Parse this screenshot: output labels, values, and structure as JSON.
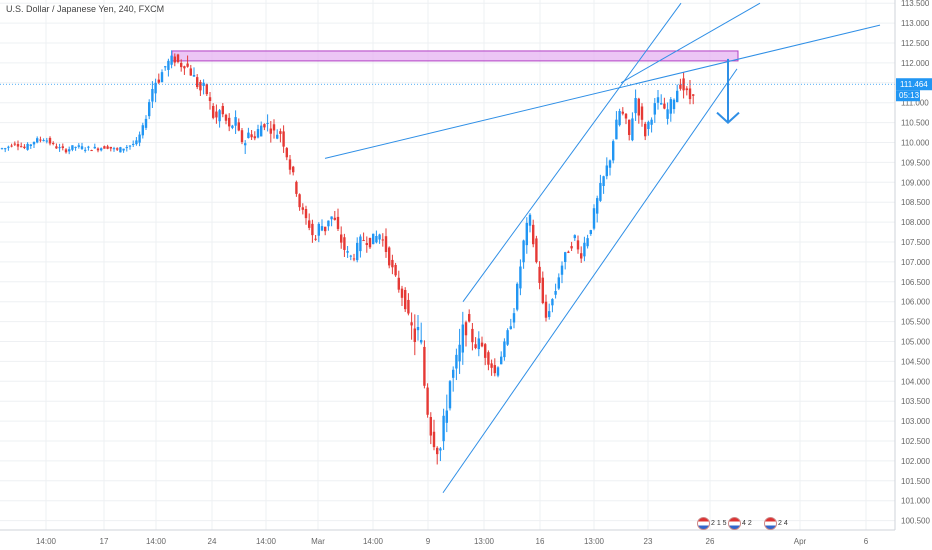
{
  "header": {
    "title": "U.S. Dollar / Japanese Yen, 240, FXCM"
  },
  "colors": {
    "up": "#2196f3",
    "down": "#e53935",
    "trendline": "#2f8fe6",
    "zone_fill": "#e6b3f2",
    "zone_border": "#b13fc4",
    "last_price": "#2196f3"
  },
  "price_label": {
    "last": "111.464",
    "countdown": "05:13"
  },
  "events": [
    {
      "icon": "us-flag-icon",
      "text": "2 1 5"
    },
    {
      "icon": "us-flag-icon",
      "text": "4 2"
    },
    {
      "icon": "us-flag-icon",
      "text": "2 4"
    }
  ],
  "chart_data": {
    "type": "candlestick",
    "title": "U.S. Dollar / Japanese Yen, 240, FXCM",
    "ylim": [
      100.3,
      113.6
    ],
    "y_ticks": [
      "100.500",
      "101.000",
      "101.500",
      "102.000",
      "102.500",
      "103.000",
      "103.500",
      "104.000",
      "104.500",
      "105.000",
      "105.500",
      "106.000",
      "106.500",
      "107.000",
      "107.500",
      "108.000",
      "108.500",
      "109.000",
      "109.500",
      "110.000",
      "110.500",
      "111.000",
      "111.500",
      "112.000",
      "112.500",
      "113.000",
      "113.500"
    ],
    "x_ticks": [
      "14:00",
      "17",
      "14:00",
      "24",
      "14:00",
      "Mar",
      "14:00",
      "9",
      "13:00",
      "16",
      "13:00",
      "23",
      "26",
      "Apr",
      "6"
    ],
    "last_price": 111.464,
    "grid": true,
    "price_path": [
      [
        0,
        109.85
      ],
      [
        8,
        109.85
      ],
      [
        18,
        110.0
      ],
      [
        28,
        109.85
      ],
      [
        38,
        110.05
      ],
      [
        48,
        110.1
      ],
      [
        58,
        109.9
      ],
      [
        68,
        109.8
      ],
      [
        78,
        109.9
      ],
      [
        90,
        109.85
      ],
      [
        100,
        109.85
      ],
      [
        110,
        109.9
      ],
      [
        120,
        109.8
      ],
      [
        130,
        109.9
      ],
      [
        140,
        110.0
      ],
      [
        148,
        110.5
      ],
      [
        153,
        111.1
      ],
      [
        157,
        111.5
      ],
      [
        162,
        111.6
      ],
      [
        168,
        111.9
      ],
      [
        173,
        112.05
      ],
      [
        178,
        112.1
      ],
      [
        183,
        111.95
      ],
      [
        188,
        112.0
      ],
      [
        193,
        111.8
      ],
      [
        198,
        111.6
      ],
      [
        203,
        111.3
      ],
      [
        208,
        111.4
      ],
      [
        213,
        111.0
      ],
      [
        218,
        110.5
      ],
      [
        223,
        110.8
      ],
      [
        228,
        110.6
      ],
      [
        233,
        110.3
      ],
      [
        238,
        110.6
      ],
      [
        243,
        110.1
      ],
      [
        248,
        110.0
      ],
      [
        253,
        110.3
      ],
      [
        258,
        110.1
      ],
      [
        263,
        110.4
      ],
      [
        268,
        110.5
      ],
      [
        273,
        110.4
      ],
      [
        278,
        110.2
      ],
      [
        283,
        110.3
      ],
      [
        288,
        109.9
      ],
      [
        293,
        109.4
      ],
      [
        298,
        109.0
      ],
      [
        303,
        108.4
      ],
      [
        308,
        108.1
      ],
      [
        313,
        107.9
      ],
      [
        318,
        107.5
      ],
      [
        323,
        108.0
      ],
      [
        328,
        107.8
      ],
      [
        333,
        108.2
      ],
      [
        338,
        108.0
      ],
      [
        343,
        107.6
      ],
      [
        348,
        107.3
      ],
      [
        353,
        107.1
      ],
      [
        358,
        107.2
      ],
      [
        363,
        107.5
      ],
      [
        368,
        107.6
      ],
      [
        373,
        107.5
      ],
      [
        378,
        107.6
      ],
      [
        383,
        107.7
      ],
      [
        388,
        107.4
      ],
      [
        393,
        107.0
      ],
      [
        398,
        106.6
      ],
      [
        403,
        106.3
      ],
      [
        408,
        106.0
      ],
      [
        413,
        105.4
      ],
      [
        418,
        105.1
      ],
      [
        423,
        105.3
      ],
      [
        428,
        103.8
      ],
      [
        433,
        102.9
      ],
      [
        438,
        102.5
      ],
      [
        443,
        102.2
      ],
      [
        448,
        103.1
      ],
      [
        453,
        104.0
      ],
      [
        458,
        104.3
      ],
      [
        463,
        104.8
      ],
      [
        468,
        105.5
      ],
      [
        473,
        105.2
      ],
      [
        478,
        104.9
      ],
      [
        483,
        105.0
      ],
      [
        488,
        104.7
      ],
      [
        493,
        104.5
      ],
      [
        498,
        104.2
      ],
      [
        503,
        104.6
      ],
      [
        508,
        104.9
      ],
      [
        513,
        105.4
      ],
      [
        518,
        105.9
      ],
      [
        523,
        106.8
      ],
      [
        528,
        107.7
      ],
      [
        533,
        108.1
      ],
      [
        538,
        107.2
      ],
      [
        543,
        106.5
      ],
      [
        548,
        105.5
      ],
      [
        553,
        105.9
      ],
      [
        558,
        106.2
      ],
      [
        563,
        106.8
      ],
      [
        568,
        107.1
      ],
      [
        573,
        107.4
      ],
      [
        578,
        107.6
      ],
      [
        583,
        107.1
      ],
      [
        588,
        107.5
      ],
      [
        593,
        107.8
      ],
      [
        598,
        108.3
      ],
      [
        603,
        108.8
      ],
      [
        608,
        109.2
      ],
      [
        613,
        109.6
      ],
      [
        618,
        110.3
      ],
      [
        623,
        110.8
      ],
      [
        628,
        110.6
      ],
      [
        633,
        110.1
      ],
      [
        638,
        111.2
      ],
      [
        643,
        110.7
      ],
      [
        648,
        110.2
      ],
      [
        653,
        110.6
      ],
      [
        658,
        110.9
      ],
      [
        663,
        111.1
      ],
      [
        668,
        110.7
      ],
      [
        673,
        110.9
      ],
      [
        678,
        111.2
      ],
      [
        683,
        111.5
      ],
      [
        688,
        111.3
      ],
      [
        693,
        111.1
      ],
      [
        698,
        111.4
      ]
    ],
    "annotations": {
      "resistance_zone": {
        "x0": 172,
        "x1": 738,
        "y_low": 112.05,
        "y_high": 112.3
      },
      "channel_upper": [
        [
          463,
          106.0
        ],
        [
          681,
          113.5
        ]
      ],
      "channel_upper_2": [
        [
          621,
          111.5
        ],
        [
          760,
          113.5
        ]
      ],
      "channel_lower": [
        [
          443,
          101.2
        ],
        [
          737,
          111.85
        ]
      ],
      "upper_trend": [
        [
          325,
          109.6
        ],
        [
          880,
          112.95
        ]
      ],
      "arrow": {
        "x": 728,
        "from": 112.1,
        "to": 110.5
      }
    }
  }
}
